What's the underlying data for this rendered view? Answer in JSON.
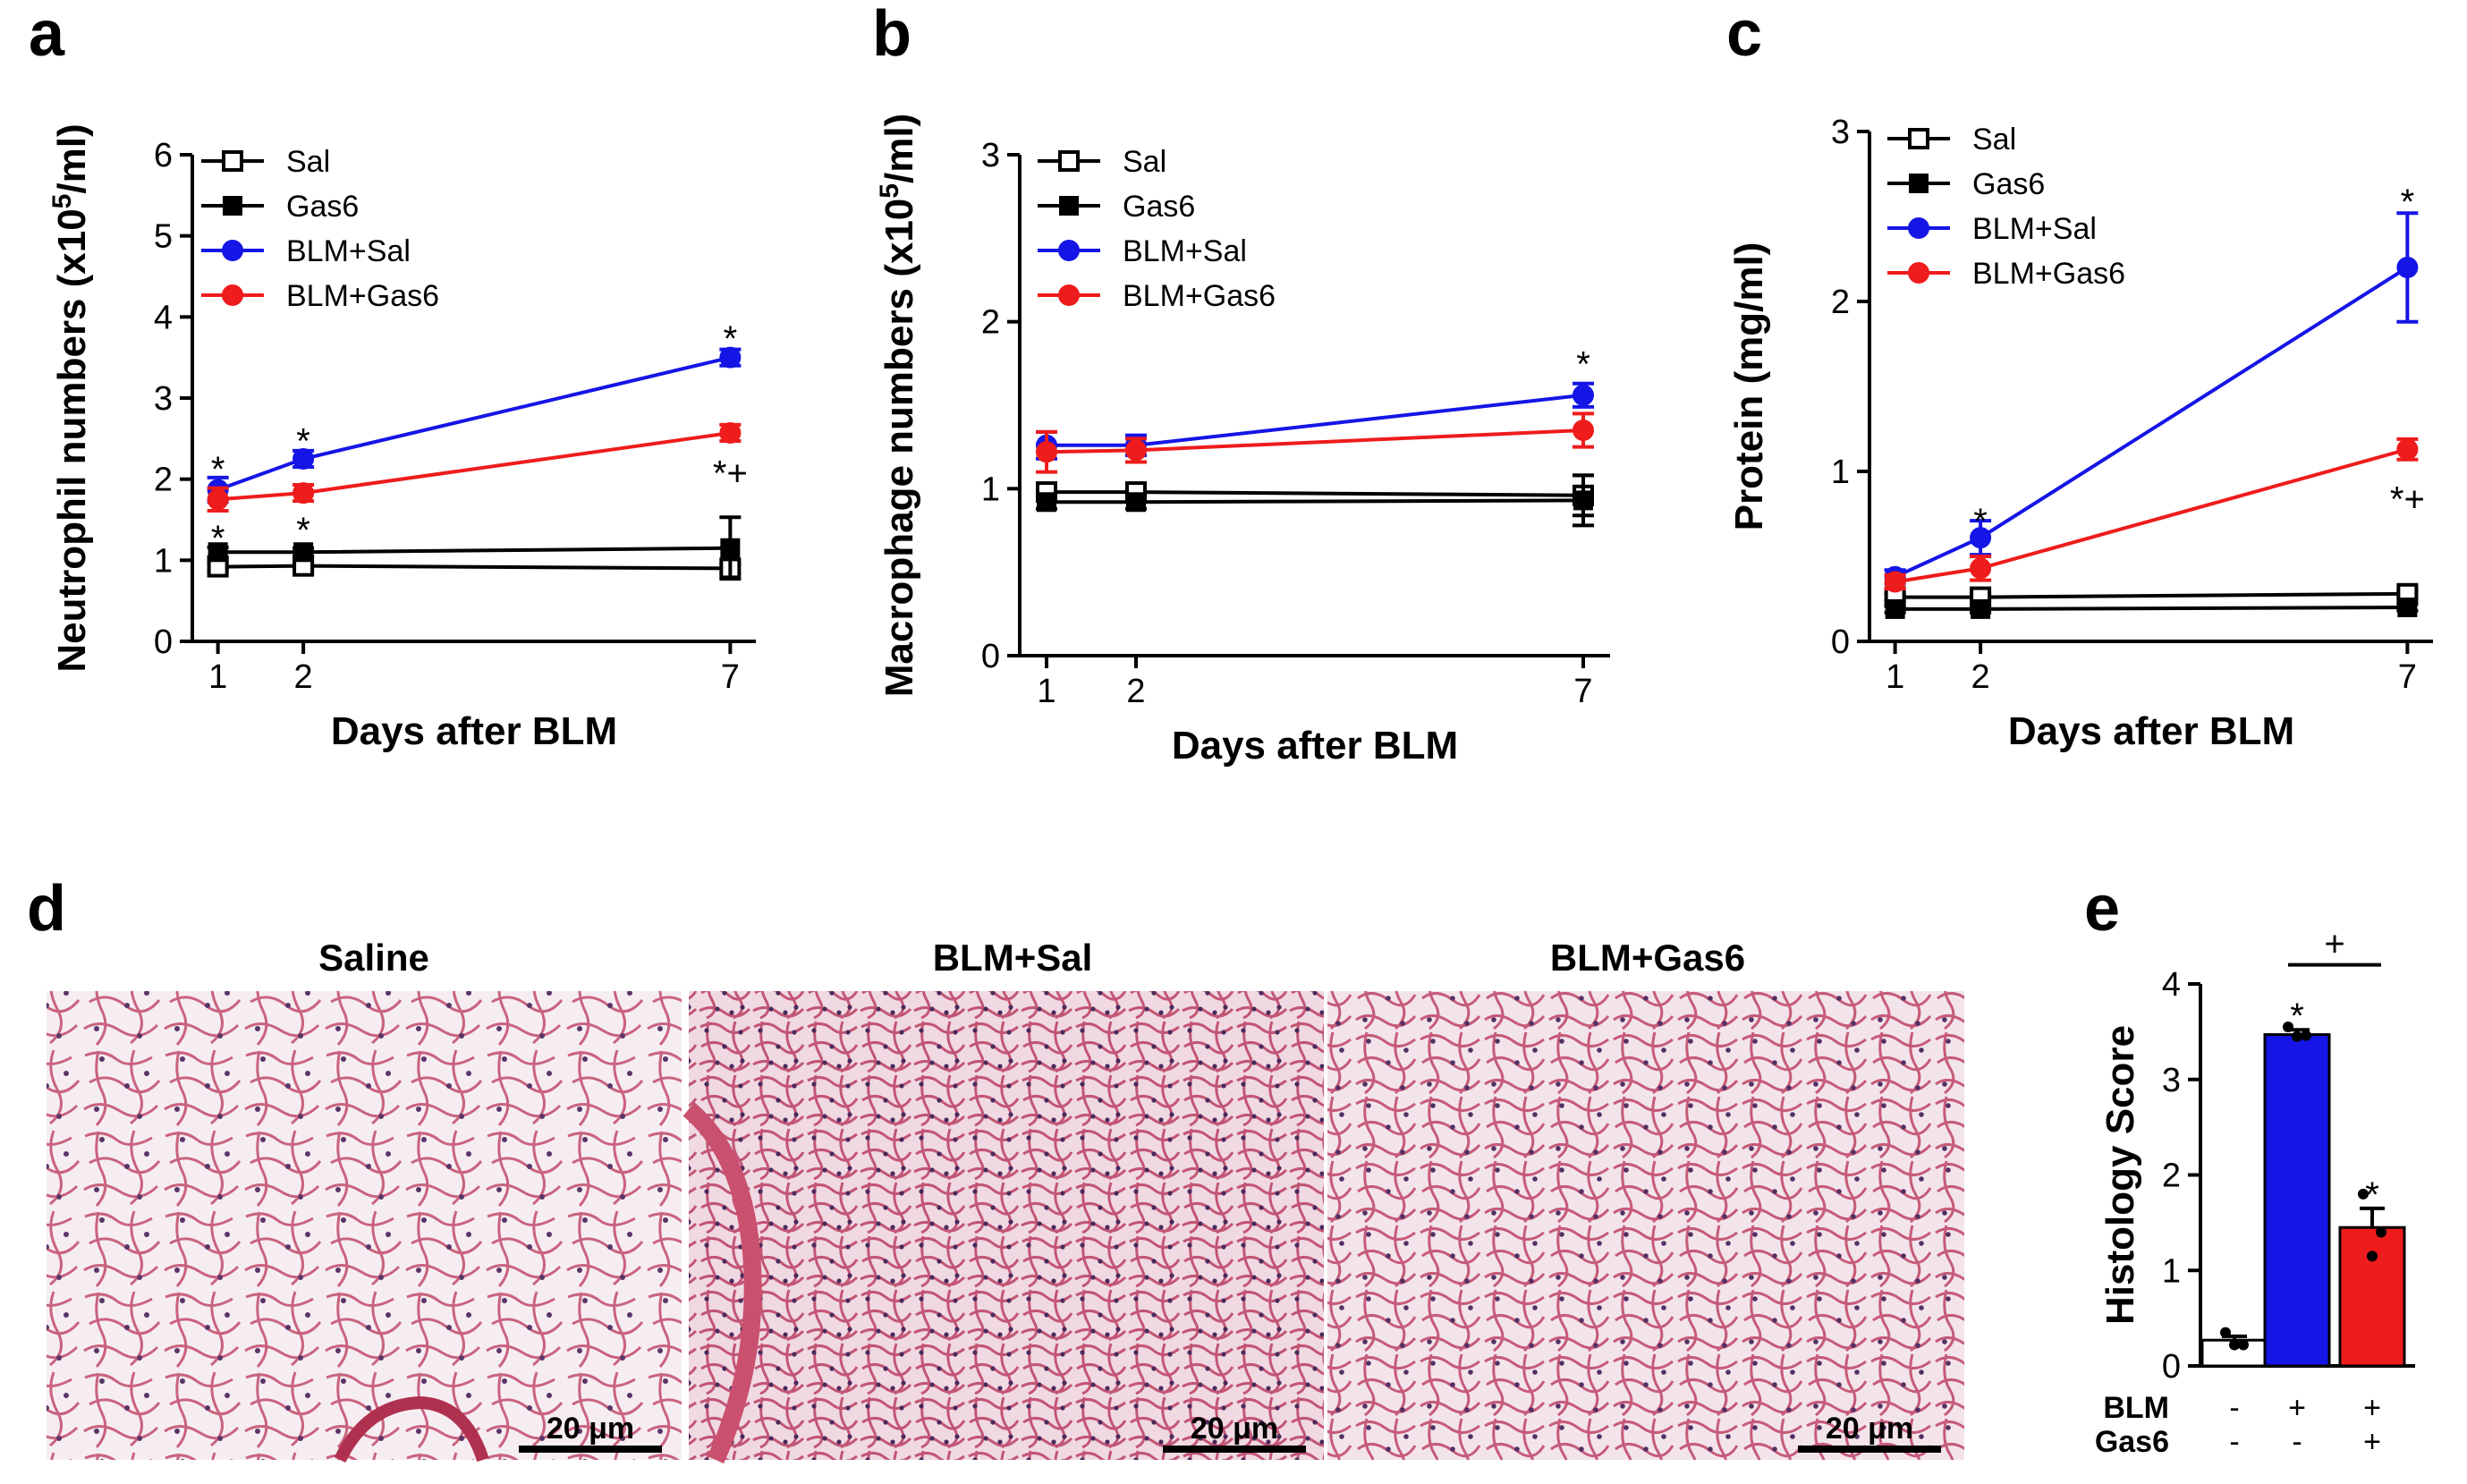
{
  "figure": {
    "panel_letters": [
      "a",
      "b",
      "c",
      "d",
      "e"
    ]
  },
  "colors": {
    "sal": "#000000",
    "gas6": "#000000",
    "blm_sal": "#1515e6",
    "blm_gas6": "#ee1c1c"
  },
  "chart_data": [
    {
      "panel": "a",
      "type": "line",
      "xlabel": "Days after BLM",
      "ylabel": "Neutrophil numbers (x10⁵/ml)",
      "ylabel_parts": {
        "base": "Neutrophil numbers (x10",
        "sup": "5",
        "tail": "/ml)"
      },
      "x": [
        1,
        2,
        7
      ],
      "xlim": [
        0.7,
        7.3
      ],
      "ylim": [
        0,
        6
      ],
      "yticks": [
        0,
        1,
        2,
        3,
        4,
        5,
        6
      ],
      "xticks": [
        1,
        2,
        7
      ],
      "legend_position": "top-left",
      "series": [
        {
          "name": "Sal",
          "marker": "square-open",
          "color": "#000000",
          "values": [
            0.92,
            0.93,
            0.9
          ],
          "err": [
            0.05,
            0.04,
            0.06
          ]
        },
        {
          "name": "Gas6",
          "marker": "square-filled",
          "color": "#000000",
          "values": [
            1.1,
            1.1,
            1.15
          ],
          "err": [
            0.06,
            0.05,
            0.38
          ]
        },
        {
          "name": "BLM+Sal",
          "marker": "circle-filled",
          "color": "#1515e6",
          "values": [
            1.87,
            2.25,
            3.5
          ],
          "err": [
            0.15,
            0.1,
            0.1
          ]
        },
        {
          "name": "BLM+Gas6",
          "marker": "circle-filled",
          "color": "#ee1c1c",
          "values": [
            1.75,
            1.83,
            2.57
          ],
          "err": [
            0.14,
            0.1,
            0.1
          ]
        }
      ],
      "annotations": [
        {
          "x": 1,
          "y": 2.15,
          "text": "*"
        },
        {
          "x": 2,
          "y": 2.5,
          "text": "*"
        },
        {
          "x": 7,
          "y": 3.76,
          "text": "*"
        },
        {
          "x": 1,
          "y": 1.3,
          "text": "*"
        },
        {
          "x": 2,
          "y": 1.4,
          "text": "*"
        },
        {
          "x": 7,
          "y": 2.1,
          "text": "*+"
        }
      ]
    },
    {
      "panel": "b",
      "type": "line",
      "xlabel": "Days after BLM",
      "ylabel": "Macrophage numbers (x10⁵/ml)",
      "ylabel_parts": {
        "base": "Macrophage numbers (x10",
        "sup": "5",
        "tail": "/ml)"
      },
      "x": [
        1,
        2,
        7
      ],
      "xlim": [
        0.7,
        7.3
      ],
      "ylim": [
        0,
        3
      ],
      "yticks": [
        0,
        1,
        2,
        3
      ],
      "xticks": [
        1,
        2,
        7
      ],
      "legend_position": "top-left",
      "series": [
        {
          "name": "Sal",
          "marker": "square-open",
          "color": "#000000",
          "values": [
            0.98,
            0.98,
            0.96
          ],
          "err": [
            0.04,
            0.04,
            0.12
          ]
        },
        {
          "name": "Gas6",
          "marker": "square-filled",
          "color": "#000000",
          "values": [
            0.92,
            0.92,
            0.93
          ],
          "err": [
            0.04,
            0.04,
            0.15
          ]
        },
        {
          "name": "BLM+Sal",
          "marker": "circle-filled",
          "color": "#1515e6",
          "values": [
            1.26,
            1.26,
            1.56
          ],
          "err": [
            0.08,
            0.06,
            0.07
          ]
        },
        {
          "name": "BLM+Gas6",
          "marker": "circle-filled",
          "color": "#ee1c1c",
          "values": [
            1.22,
            1.23,
            1.35
          ],
          "err": [
            0.12,
            0.07,
            0.1
          ]
        }
      ],
      "annotations": [
        {
          "x": 7,
          "y": 1.76,
          "text": "*"
        }
      ]
    },
    {
      "panel": "c",
      "type": "line",
      "xlabel": "Days after BLM",
      "ylabel": "Protein (mg/ml)",
      "x": [
        1,
        2,
        7
      ],
      "xlim": [
        0.7,
        7.3
      ],
      "ylim": [
        0,
        3
      ],
      "yticks": [
        0,
        1,
        2,
        3
      ],
      "xticks": [
        1,
        2,
        7
      ],
      "legend_position": "top-left",
      "series": [
        {
          "name": "Sal",
          "marker": "square-open",
          "color": "#000000",
          "values": [
            0.26,
            0.26,
            0.28
          ],
          "err": [
            0.02,
            0.02,
            0.02
          ]
        },
        {
          "name": "Gas6",
          "marker": "square-filled",
          "color": "#000000",
          "values": [
            0.19,
            0.19,
            0.2
          ],
          "err": [
            0.02,
            0.02,
            0.02
          ]
        },
        {
          "name": "BLM+Sal",
          "marker": "circle-filled",
          "color": "#1515e6",
          "values": [
            0.38,
            0.61,
            2.2
          ],
          "err": [
            0.04,
            0.1,
            0.32
          ]
        },
        {
          "name": "BLM+Gas6",
          "marker": "circle-filled",
          "color": "#ee1c1c",
          "values": [
            0.35,
            0.43,
            1.13
          ],
          "err": [
            0.04,
            0.07,
            0.06
          ]
        }
      ],
      "annotations": [
        {
          "x": 2,
          "y": 0.72,
          "text": "*"
        },
        {
          "x": 7,
          "y": 2.6,
          "text": "*"
        },
        {
          "x": 7,
          "y": 0.85,
          "text": "*+"
        }
      ]
    },
    {
      "panel": "e",
      "type": "bar",
      "ylabel": "Histology Score",
      "ylim": [
        0,
        4
      ],
      "yticks": [
        0,
        1,
        2,
        3,
        4
      ],
      "categories": [
        "Saline",
        "BLM+Sal",
        "BLM+Gas6"
      ],
      "values": [
        0.27,
        3.47,
        1.45
      ],
      "err": [
        0.04,
        0.05,
        0.2
      ],
      "colors": [
        "#ffffff",
        "#1515e6",
        "#ee1c1c"
      ],
      "points": [
        [
          0.35,
          0.22,
          0.22
        ],
        [
          3.55,
          3.46,
          3.45
        ],
        [
          1.8,
          1.4,
          1.15
        ]
      ],
      "row_labels": [
        "BLM",
        "Gas6"
      ],
      "condition_table": [
        [
          "-",
          "+",
          "+"
        ],
        [
          "-",
          "-",
          "+"
        ]
      ],
      "annotations": [
        {
          "bar": 1,
          "text": "*"
        },
        {
          "bar": 2,
          "text": "*"
        },
        {
          "bracket": [
            1,
            2
          ],
          "text": "+"
        }
      ]
    }
  ],
  "micrographs": {
    "panel": "d",
    "titles": [
      "Saline",
      "BLM+Sal",
      "BLM+Gas6"
    ],
    "scale_bar_label": "20 μm"
  }
}
